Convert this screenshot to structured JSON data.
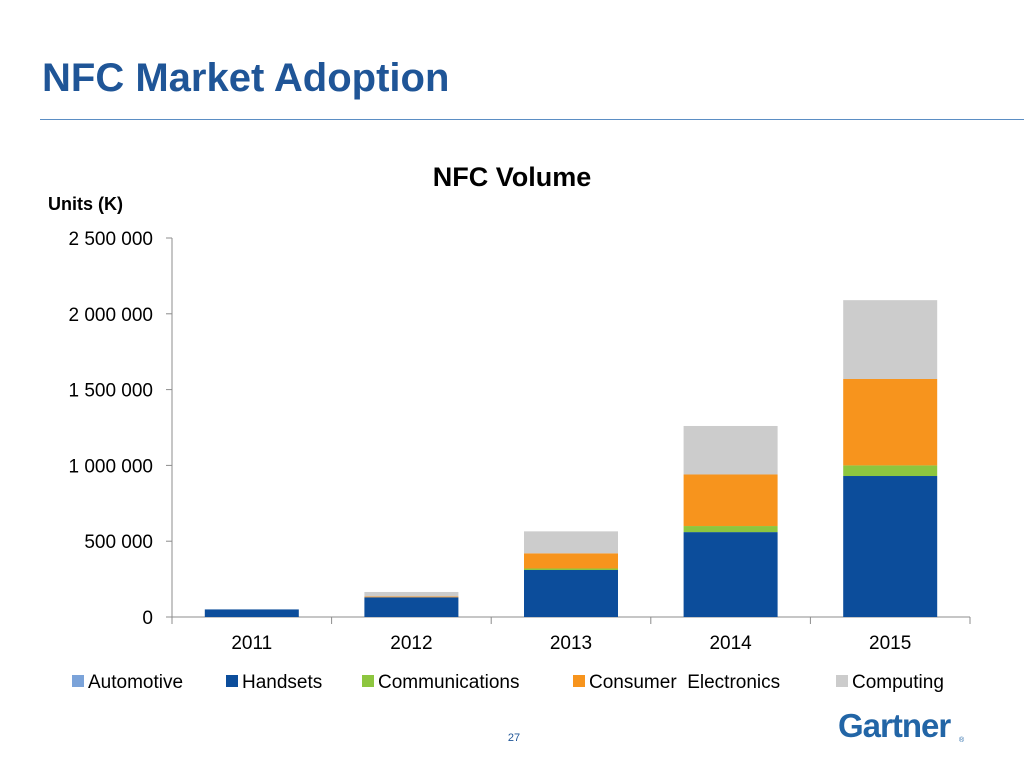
{
  "slide": {
    "title": "NFC Market Adoption",
    "page_number": "27",
    "logo_text": "Gartner",
    "logo_mark": "®"
  },
  "chart_data": {
    "type": "bar",
    "stacked": true,
    "title": "NFC Volume",
    "ylabel": "Units (K)",
    "xlabel": "",
    "categories": [
      "2011",
      "2012",
      "2013",
      "2014",
      "2015"
    ],
    "ylim": [
      0,
      2500000
    ],
    "yticks": [
      0,
      500000,
      1000000,
      1500000,
      2000000,
      2500000
    ],
    "ytick_labels": [
      "0",
      "500 000",
      "1 000 000",
      "1 500 000",
      "2 000 000",
      "2 500 000"
    ],
    "grid": false,
    "legend_position": "bottom",
    "series": [
      {
        "name": "Automotive",
        "color": "#7ba3d9",
        "values": [
          0,
          0,
          0,
          0,
          0
        ]
      },
      {
        "name": "Handsets",
        "color": "#0c4d9b",
        "values": [
          50000,
          130000,
          310000,
          560000,
          930000
        ]
      },
      {
        "name": "Communications",
        "color": "#8dc63f",
        "values": [
          0,
          0,
          10000,
          40000,
          70000
        ]
      },
      {
        "name": "Consumer  Electronics",
        "color": "#f7941d",
        "values": [
          0,
          5000,
          100000,
          340000,
          570000
        ]
      },
      {
        "name": "Computing",
        "color": "#cccccc",
        "values": [
          0,
          30000,
          145000,
          320000,
          520000
        ]
      }
    ]
  }
}
